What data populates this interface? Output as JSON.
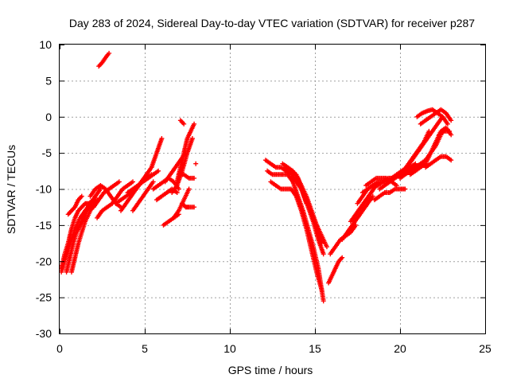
{
  "chart_data": {
    "type": "scatter",
    "title": "Day 283 of 2024, Sidereal Day-to-day VTEC variation (SDTVAR) for receiver p287",
    "xlabel": "GPS time / hours",
    "ylabel": "SDTVAR / TECUs",
    "xlim": [
      0,
      25
    ],
    "ylim": [
      -30,
      10
    ],
    "xticks": [
      0,
      5,
      10,
      15,
      20,
      25
    ],
    "yticks": [
      -30,
      -25,
      -20,
      -15,
      -10,
      -5,
      0,
      5,
      10
    ],
    "grid": true,
    "marker": "plus",
    "color": "#ff0000",
    "series": [
      {
        "x": [
          0.1,
          0.3,
          0.5,
          0.7,
          0.9,
          1.1,
          1.3,
          1.5,
          1.7,
          2.0
        ],
        "y": [
          -21,
          -19,
          -17.5,
          -15.5,
          -14,
          -13,
          -12.5,
          -12,
          -12,
          -11.5
        ]
      },
      {
        "x": [
          0.1,
          0.3,
          0.5,
          0.7,
          0.9,
          1.2,
          1.5,
          1.8,
          2.1,
          2.4
        ],
        "y": [
          -21.5,
          -20,
          -18.5,
          -17,
          -15.5,
          -14,
          -13,
          -12,
          -11,
          -10
        ]
      },
      {
        "x": [
          0.4,
          0.6,
          0.8,
          1.0,
          1.2,
          1.4,
          1.6,
          1.9,
          2.2
        ],
        "y": [
          -21.5,
          -19.5,
          -17.5,
          -16,
          -15,
          -14,
          -13,
          -12,
          -11.5
        ]
      },
      {
        "x": [
          0.7,
          0.9,
          1.1,
          1.3,
          1.5,
          1.8,
          2.1
        ],
        "y": [
          -21.5,
          -19.5,
          -17.5,
          -16,
          -14.5,
          -13,
          -12
        ]
      },
      {
        "x": [
          0.5,
          0.7,
          0.9,
          1.1,
          1.3
        ],
        "y": [
          -13.5,
          -13,
          -12.5,
          -11.5,
          -11
        ]
      },
      {
        "x": [
          2.3,
          2.5,
          2.7,
          2.9
        ],
        "y": [
          7,
          7.5,
          8.2,
          8.8
        ]
      },
      {
        "x": [
          2.0,
          2.3,
          2.6,
          2.9,
          3.2,
          3.5
        ],
        "y": [
          -12.5,
          -11.5,
          -10.5,
          -10,
          -9.5,
          -9
        ]
      },
      {
        "x": [
          1.8,
          2.1,
          2.4,
          2.7,
          3.0,
          3.3,
          3.6
        ],
        "y": [
          -11,
          -10,
          -9.5,
          -10,
          -11,
          -12,
          -12.5
        ]
      },
      {
        "x": [
          2.2,
          2.5,
          2.8,
          3.1,
          3.4,
          3.7,
          4.0,
          4.3
        ],
        "y": [
          -14,
          -13,
          -12.5,
          -12,
          -11,
          -10,
          -9.5,
          -9
        ]
      },
      {
        "x": [
          3.3,
          3.6,
          3.9,
          4.2,
          4.5,
          4.8,
          5.1,
          5.4
        ],
        "y": [
          -12,
          -11.5,
          -11,
          -10.5,
          -10,
          -9,
          -8.5,
          -8
        ]
      },
      {
        "x": [
          3.6,
          3.9,
          4.2,
          4.5,
          4.8,
          5.1,
          5.4,
          5.7,
          6.0
        ],
        "y": [
          -13,
          -12,
          -11,
          -10,
          -9,
          -8,
          -7,
          -5,
          -3
        ]
      },
      {
        "x": [
          4.0,
          4.3,
          4.6,
          4.9,
          5.2,
          5.5,
          5.8
        ],
        "y": [
          -10.5,
          -10,
          -9.5,
          -9,
          -8.5,
          -8,
          -7.5
        ]
      },
      {
        "x": [
          4.3,
          4.6,
          4.9,
          5.2,
          5.5
        ],
        "y": [
          -13,
          -12,
          -11,
          -10,
          -9
        ]
      },
      {
        "x": [
          5.5,
          5.8,
          6.1,
          6.4,
          6.7,
          7.0
        ],
        "y": [
          -10,
          -9.5,
          -9,
          -8.5,
          -9,
          -10
        ]
      },
      {
        "x": [
          5.7,
          6.0,
          6.3,
          6.6,
          6.9
        ],
        "y": [
          -11.5,
          -11,
          -10.5,
          -10,
          -10.5
        ]
      },
      {
        "x": [
          6.1,
          6.4,
          6.7,
          7.0
        ],
        "y": [
          -15,
          -14.5,
          -14,
          -13.5
        ]
      },
      {
        "x": [
          6.2,
          6.5,
          6.8,
          7.1,
          7.4
        ],
        "y": [
          -9,
          -8,
          -7,
          -6,
          -5
        ]
      },
      {
        "x": [
          6.6,
          6.9,
          7.2,
          7.5,
          7.8
        ],
        "y": [
          -10.5,
          -9.5,
          -7.5,
          -5,
          -3
        ]
      },
      {
        "x": [
          6.9,
          7.1,
          7.3,
          7.5,
          7.7,
          7.9
        ],
        "y": [
          -9,
          -7,
          -5,
          -3,
          -2,
          -1
        ]
      },
      {
        "x": [
          6.7,
          7.0,
          7.3,
          7.6
        ],
        "y": [
          -14,
          -13,
          -11.5,
          -10
        ]
      },
      {
        "x": [
          7.0,
          7.3,
          7.6,
          7.9
        ],
        "y": [
          -8,
          -8,
          -8.5,
          -8.5
        ]
      },
      {
        "x": [
          7.2,
          7.4,
          7.6,
          7.9
        ],
        "y": [
          -12,
          -12.5,
          -12.5,
          -12.5
        ]
      },
      {
        "x": [
          7.1,
          7.3
        ],
        "y": [
          -0.5,
          -1
        ]
      },
      {
        "x": [
          8.0
        ],
        "y": [
          -6.5
        ]
      },
      {
        "x": [
          12.1,
          12.4,
          12.7,
          13.0,
          13.3,
          13.6,
          13.9,
          14.2,
          14.5
        ],
        "y": [
          -6,
          -6.5,
          -7,
          -7,
          -7.5,
          -8,
          -9,
          -10,
          -12
        ]
      },
      {
        "x": [
          12.2,
          12.5,
          12.8,
          13.1,
          13.4,
          13.7,
          14.0,
          14.3,
          14.6,
          14.9,
          15.2,
          15.5
        ],
        "y": [
          -7.5,
          -8,
          -8,
          -8,
          -8,
          -9,
          -11,
          -13,
          -15.5,
          -18,
          -21,
          -25.5
        ]
      },
      {
        "x": [
          12.4,
          12.7,
          13.0,
          13.3,
          13.6,
          13.9,
          14.2,
          14.5,
          14.8,
          15.1,
          15.4
        ],
        "y": [
          -9,
          -9.5,
          -10,
          -10,
          -10,
          -11,
          -13,
          -15.5,
          -18.5,
          -21.5,
          -24
        ]
      },
      {
        "x": [
          13.1,
          13.4,
          13.7,
          14.0,
          14.3,
          14.6,
          14.9,
          15.2,
          15.5
        ],
        "y": [
          -6.5,
          -7,
          -7.5,
          -8.5,
          -10.5,
          -12.5,
          -14.5,
          -17,
          -19
        ]
      },
      {
        "x": [
          13.3,
          13.6,
          13.9,
          14.2,
          14.5,
          14.8,
          15.1,
          15.4
        ],
        "y": [
          -7,
          -7.5,
          -8,
          -9.5,
          -11,
          -13,
          -15,
          -17.5
        ]
      },
      {
        "x": [
          15.1,
          15.4,
          15.7
        ],
        "y": [
          -15,
          -16.5,
          -18
        ]
      },
      {
        "x": [
          15.8,
          16.0,
          16.2,
          16.4,
          16.6
        ],
        "y": [
          -23,
          -22,
          -21,
          -20,
          -19.5
        ]
      },
      {
        "x": [
          15.9,
          16.2,
          16.5,
          16.8,
          17.1,
          17.4
        ],
        "y": [
          -19,
          -18,
          -17,
          -16.5,
          -16,
          -15
        ]
      },
      {
        "x": [
          16.6,
          16.9,
          17.2,
          17.5,
          17.8,
          18.1,
          18.4
        ],
        "y": [
          -17,
          -16,
          -15,
          -14,
          -13,
          -12,
          -11
        ]
      },
      {
        "x": [
          17.1,
          17.4,
          17.7,
          18.0,
          18.3,
          18.6
        ],
        "y": [
          -14.5,
          -13.5,
          -12.5,
          -11.5,
          -10.5,
          -9.5
        ]
      },
      {
        "x": [
          17.5,
          17.8,
          18.1,
          18.4,
          18.7,
          19.0,
          19.3
        ],
        "y": [
          -12,
          -11,
          -10,
          -9.5,
          -9,
          -9,
          -9
        ]
      },
      {
        "x": [
          17.8,
          18.1,
          18.4,
          18.7,
          19.0,
          19.3,
          19.6,
          19.9
        ],
        "y": [
          -10.5,
          -10,
          -9.5,
          -9.5,
          -9,
          -8.5,
          -8.5,
          -8
        ]
      },
      {
        "x": [
          18.0,
          18.3,
          18.6,
          18.9,
          19.2,
          19.5,
          19.8
        ],
        "y": [
          -9.5,
          -9,
          -8.5,
          -8.5,
          -8.5,
          -9,
          -9.5
        ]
      },
      {
        "x": [
          18.5,
          18.8,
          19.1,
          19.4,
          19.7,
          20.0,
          20.3
        ],
        "y": [
          -11.5,
          -11,
          -10.5,
          -10.5,
          -10,
          -10,
          -10
        ]
      },
      {
        "x": [
          18.8,
          19.1,
          19.4,
          19.7,
          20.0,
          20.3,
          20.6,
          20.9
        ],
        "y": [
          -10,
          -9.5,
          -9,
          -8.5,
          -8,
          -7.5,
          -7,
          -6.5
        ]
      },
      {
        "x": [
          19.3,
          19.6,
          19.9,
          20.2,
          20.5,
          20.8,
          21.1,
          21.4,
          21.7
        ],
        "y": [
          -9,
          -8.5,
          -8,
          -7.5,
          -6.5,
          -5.5,
          -4.5,
          -3.5,
          -2
        ]
      },
      {
        "x": [
          20.0,
          20.3,
          20.6,
          20.9,
          21.2,
          21.5,
          21.8,
          22.1,
          22.4
        ],
        "y": [
          -8.5,
          -8,
          -7.5,
          -7,
          -6.5,
          -6,
          -5,
          -4,
          -2.5
        ]
      },
      {
        "x": [
          19.5,
          19.8,
          20.1,
          20.4,
          20.7,
          21.0,
          21.3,
          21.6,
          21.9,
          22.2,
          22.5
        ],
        "y": [
          -8.5,
          -8,
          -7.5,
          -7,
          -6,
          -5,
          -4,
          -3,
          -2,
          -1,
          0
        ]
      },
      {
        "x": [
          20.6,
          20.9,
          21.2,
          21.5,
          21.8,
          22.1,
          22.4,
          22.7,
          23.0
        ],
        "y": [
          -8,
          -7.5,
          -7,
          -6.5,
          -5,
          -3.5,
          -2,
          -1.5,
          -2.5
        ]
      },
      {
        "x": [
          21.2,
          21.5,
          21.8,
          22.1,
          22.4,
          22.7,
          23.0
        ],
        "y": [
          -1,
          -0.5,
          0,
          0.5,
          1,
          0.5,
          -0.5
        ]
      },
      {
        "x": [
          21.0,
          21.3,
          21.6,
          21.9,
          22.2,
          22.5,
          22.8
        ],
        "y": [
          0,
          0.5,
          0.8,
          1,
          0.5,
          0,
          -1
        ]
      },
      {
        "x": [
          21.5,
          21.8,
          22.1,
          22.4,
          22.7,
          23.0
        ],
        "y": [
          -7,
          -6.5,
          -6,
          -5.5,
          -5.5,
          -6
        ]
      },
      {
        "x": [
          22.3,
          22.6,
          22.9
        ],
        "y": [
          -2.5,
          -2,
          -2
        ]
      }
    ]
  }
}
